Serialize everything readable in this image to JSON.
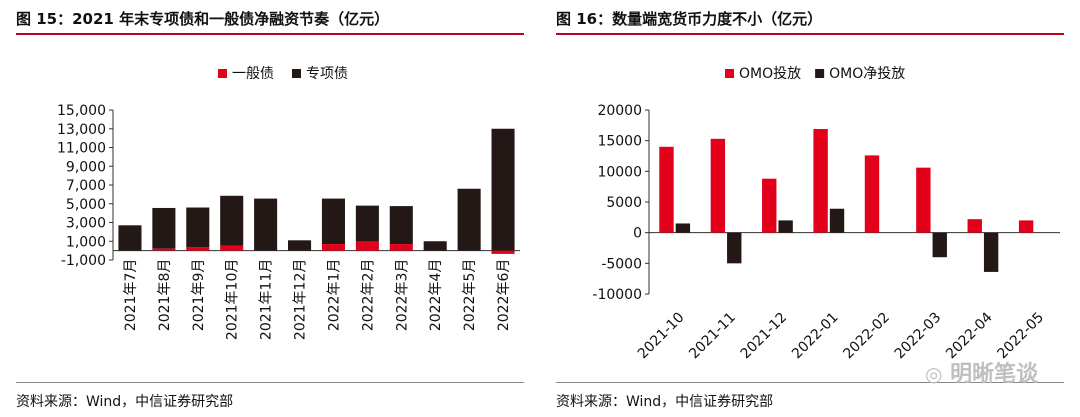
{
  "charts": {
    "left": {
      "title": "图 15：2021 年末专项债和一般债净融资节奏（亿元）",
      "source": "资料来源：Wind，中信证券研究部"
    },
    "right": {
      "title": "图 16：数量端宽货币力度不小（亿元）",
      "source": "资料来源：Wind，中信证券研究部",
      "watermark": "明晰笔谈"
    }
  },
  "colors": {
    "red": "#e2001a",
    "dark": "#231815",
    "rule": "#c0001a"
  },
  "chart_data": [
    {
      "type": "bar",
      "stacked": true,
      "title": "图 15：2021 年末专项债和一般债净融资节奏（亿元）",
      "categories": [
        "2021年7月",
        "2021年8月",
        "2021年9月",
        "2021年10月",
        "2021年11月",
        "2021年12月",
        "2022年1月",
        "2022年2月",
        "2022年3月",
        "2022年4月",
        "2022年5月",
        "2022年6月"
      ],
      "series": [
        {
          "name": "一般债",
          "color": "#e2001a",
          "values": [
            0,
            200,
            350,
            550,
            0,
            0,
            700,
            950,
            700,
            0,
            0,
            -350
          ]
        },
        {
          "name": "专项债",
          "color": "#231815",
          "values": [
            2700,
            4350,
            4250,
            5300,
            5550,
            1100,
            4850,
            3850,
            4050,
            1000,
            6600,
            13000
          ]
        }
      ],
      "yticks": [
        "15,000",
        "13,000",
        "11,000",
        "9,000",
        "7,000",
        "5,000",
        "3,000",
        "1,000",
        "-1,000"
      ],
      "ylim": [
        -1000,
        15000
      ],
      "legend": "top-center"
    },
    {
      "type": "bar",
      "title": "图 16：数量端宽货币力度不小（亿元）",
      "categories": [
        "2021-10",
        "2021-11",
        "2021-12",
        "2022-01",
        "2022-02",
        "2022-03",
        "2022-04",
        "2022-05"
      ],
      "series": [
        {
          "name": "OMO投放",
          "color": "#e2001a",
          "values": [
            14000,
            15300,
            8800,
            16900,
            12600,
            10600,
            2200,
            2000
          ]
        },
        {
          "name": "OMO净投放",
          "color": "#231815",
          "values": [
            1500,
            -5000,
            2000,
            3900,
            0,
            -4000,
            -6400,
            0
          ]
        }
      ],
      "yticks": [
        "20000",
        "15000",
        "10000",
        "5000",
        "0",
        "-5000",
        "-10000"
      ],
      "ylim": [
        -10000,
        20000
      ],
      "legend": "top-center"
    }
  ]
}
